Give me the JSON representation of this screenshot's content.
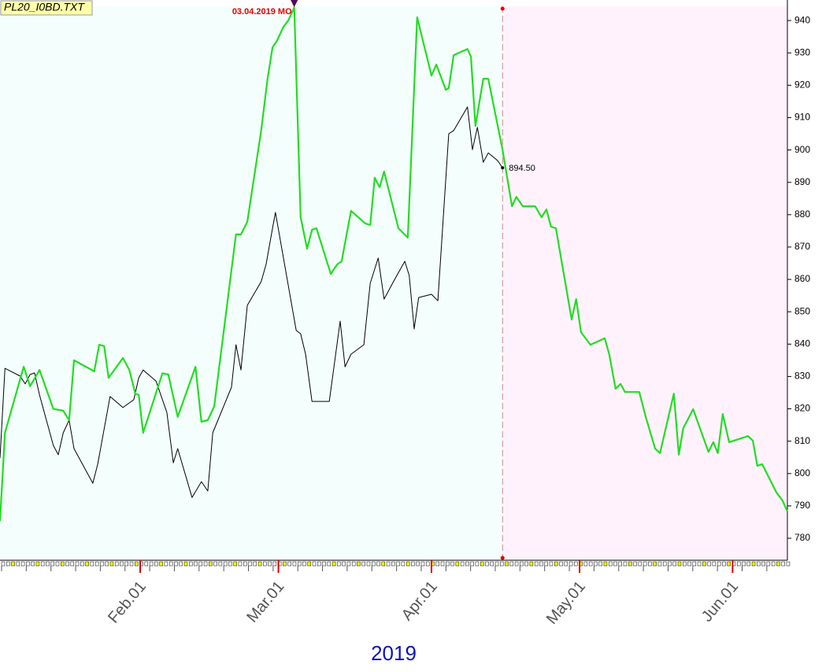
{
  "chart_data": {
    "type": "line",
    "title": "PL20_I0BD.TXT",
    "x_label": "2019",
    "xlim": [
      3.6,
      163.1
    ],
    "ylim": [
      773.2,
      944.4
    ],
    "xticks": [
      {
        "value": 32,
        "label": "Feb.01"
      },
      {
        "value": 60,
        "label": "Mar.01"
      },
      {
        "value": 91,
        "label": "Apr.01"
      },
      {
        "value": 121,
        "label": "May.01"
      },
      {
        "value": 152,
        "label": "Jun.01"
      }
    ],
    "yticks": [
      780,
      790,
      800,
      810,
      820,
      830,
      840,
      850,
      860,
      870,
      880,
      890,
      900,
      910,
      920,
      930,
      940
    ],
    "background_colors": [
      "#f4fffd",
      "#fff2fd"
    ],
    "divider_x": 105.4,
    "marker": {
      "label": "03.04.2019 MO",
      "x": 63.2
    },
    "price_label": {
      "value": 894.5,
      "label": "894.50"
    },
    "series": [
      {
        "color": "#22dd22",
        "x": [
          3.6,
          4.6,
          8.4,
          9.7,
          11.6,
          14.4,
          16.4,
          17.6,
          18.6,
          22.7,
          23.7,
          24.7,
          25.6,
          28.5,
          29.8,
          31,
          31.7,
          32.6,
          36.5,
          37.7,
          39.6,
          43.2,
          44.4,
          45.7,
          47,
          51.4,
          52.4,
          53.7,
          56.5,
          57.8,
          58.8,
          59.7,
          61,
          62,
          63.2,
          64.5,
          65.8,
          66.8,
          67.7,
          70.6,
          71.9,
          72.8,
          74.7,
          77.6,
          78.6,
          79.5,
          80.5,
          81.4,
          84.3,
          86.2,
          88.1,
          91,
          92,
          93.9,
          94.5,
          95.5,
          98.3,
          99,
          99.9,
          101.5,
          102.5,
          105.4,
          107.3,
          108.2,
          109.5,
          112,
          113.3,
          114.3,
          115.2,
          116.2,
          119.4,
          120.3,
          121.3,
          123.2,
          126.1,
          127,
          128.3,
          129.3,
          130.2,
          133.1,
          134.4,
          136.3,
          137.3,
          140.1,
          141.1,
          142,
          144,
          147.1,
          148.1,
          149,
          150,
          151.3,
          154.2,
          155.1,
          156.1,
          157,
          158,
          160.9,
          162.1,
          163.1
        ],
        "values": [
          785.3,
          812.6,
          833,
          827,
          832,
          820,
          819.4,
          816.5,
          835,
          831.6,
          839.8,
          839.4,
          829.6,
          835.7,
          832,
          824.7,
          824.3,
          812.6,
          831,
          830.6,
          817.5,
          833,
          816,
          816.5,
          820.8,
          873.9,
          873.9,
          877.8,
          906,
          922,
          931.7,
          933.7,
          938,
          940,
          944,
          879.2,
          869.5,
          875.3,
          875.8,
          861.7,
          864.6,
          865.6,
          881.2,
          877.3,
          876.8,
          891.4,
          888.5,
          893.3,
          875.8,
          872.9,
          941,
          923,
          926.4,
          918.6,
          919.1,
          929.3,
          931.2,
          928.8,
          907.4,
          922,
          922,
          900.1,
          882.6,
          885.5,
          882.6,
          882.6,
          879.2,
          881.6,
          876.3,
          875.8,
          847.6,
          853.9,
          843.7,
          839.8,
          841.8,
          836.9,
          826.2,
          827.7,
          825.2,
          825.2,
          817.5,
          807.7,
          806.3,
          824.7,
          805.8,
          814,
          819.9,
          806.7,
          809.7,
          806.3,
          818.4,
          809.7,
          811.1,
          811.6,
          810.2,
          802.4,
          802.9,
          794.1,
          791.7,
          788.3
        ]
      },
      {
        "color": "#000000",
        "x": [
          3.6,
          4.6,
          7.7,
          8.7,
          9.7,
          10.6,
          11.6,
          14.4,
          15.4,
          16.4,
          17.6,
          18.6,
          22.4,
          23.4,
          25.9,
          28.5,
          30.7,
          31.7,
          32.6,
          35.2,
          37.4,
          38.7,
          39.6,
          42.5,
          44.4,
          45.7,
          46.7,
          50.5,
          51.4,
          52.4,
          53.7,
          56.5,
          57.5,
          58.8,
          59.4,
          63.6,
          64.5,
          65.5,
          66.8,
          70.3,
          72.5,
          73.5,
          74.7,
          77.3,
          78.6,
          80.2,
          81.4,
          83.3,
          85.6,
          86.5,
          87.5,
          88.4,
          91,
          92.3,
          94.5,
          95.5,
          98.3,
          99.3,
          100.3,
          101.5,
          102.5,
          104.4,
          105.4
        ],
        "values": [
          804.8,
          832.5,
          830.1,
          827.7,
          830.6,
          831.1,
          824.3,
          808.7,
          805.8,
          812.6,
          816.5,
          807.7,
          797,
          802.9,
          823.8,
          820.4,
          822.8,
          829.6,
          832,
          828.6,
          818.9,
          803.3,
          807.7,
          792.6,
          797.5,
          794.6,
          812.6,
          826.7,
          839.8,
          832,
          852,
          859.3,
          864.6,
          875.8,
          880.7,
          844.2,
          843.2,
          836.9,
          822.3,
          822.3,
          847.1,
          833,
          836.9,
          839.8,
          858.8,
          866.6,
          853.9,
          859.3,
          865.6,
          861.2,
          844.7,
          854.4,
          855.4,
          853.4,
          905,
          906,
          913.3,
          900.1,
          907,
          896.2,
          899.1,
          896.7,
          894.5
        ]
      }
    ]
  }
}
